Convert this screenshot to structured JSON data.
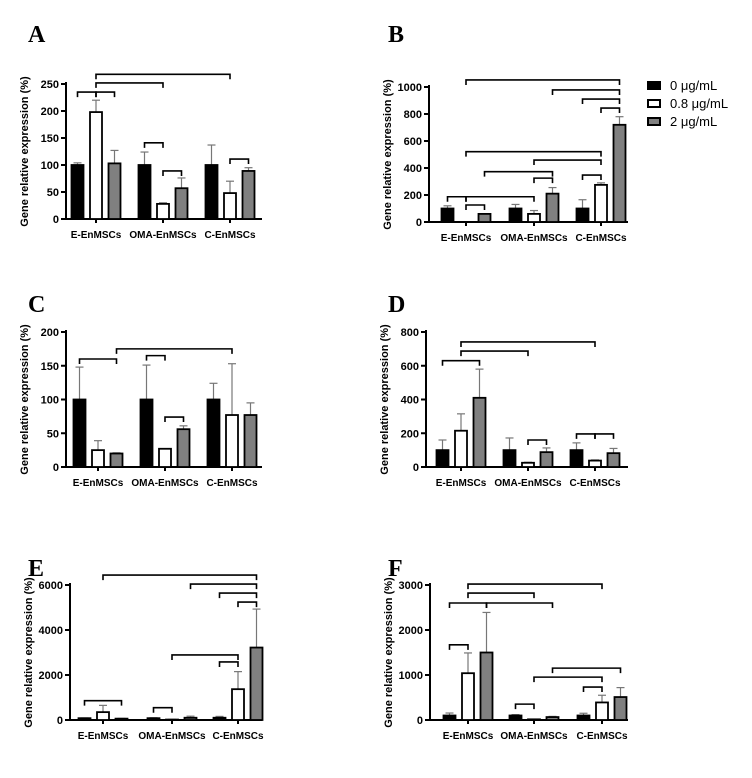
{
  "colors": {
    "0 μg/mL": "#000000",
    "0.8 μg/mL": "#ffffff",
    "2 μg/mL": "#808080",
    "axis": "#000000",
    "bracket": "#000000"
  },
  "legend": {
    "placement": "right of panel B",
    "entries": [
      "0 μg/mL",
      "0.8 μg/mL",
      "2 μg/mL"
    ]
  },
  "chart_data": [
    {
      "panel": "A",
      "type": "bar",
      "ylabel": "Gene relative expression (%)",
      "ylim": [
        0,
        250
      ],
      "yticks": [
        0,
        50,
        100,
        150,
        200,
        250
      ],
      "categories": [
        "E-EnMSCs",
        "OMA-EnMSCs",
        "C-EnMSCs"
      ],
      "series": [
        {
          "name": "0 μg/mL",
          "values": [
            100,
            100,
            100
          ],
          "error_upper": [
            104,
            124,
            137
          ]
        },
        {
          "name": "0.8 μg/mL",
          "values": [
            198,
            28,
            48
          ],
          "error_upper": [
            220,
            30,
            70
          ]
        },
        {
          "name": "2 μg/mL",
          "values": [
            103,
            57,
            89
          ],
          "error_upper": [
            127,
            76,
            95
          ]
        }
      ],
      "significance_brackets": [
        {
          "bars": [
            0,
            1
          ],
          "y": 235
        },
        {
          "bars": [
            1,
            2
          ],
          "y": 235
        },
        {
          "bars": [
            1,
            4
          ],
          "y": 252
        },
        {
          "bars": [
            1,
            7
          ],
          "y": 268
        },
        {
          "bars": [
            3,
            4
          ],
          "y": 141
        },
        {
          "bars": [
            4,
            5
          ],
          "y": 89
        },
        {
          "bars": [
            7,
            8
          ],
          "y": 111
        }
      ]
    },
    {
      "panel": "B",
      "type": "bar",
      "ylabel": "Gene relative expression (%)",
      "ylim": [
        0,
        1000
      ],
      "yticks": [
        0,
        200,
        400,
        600,
        800,
        1000
      ],
      "categories": [
        "E-EnMSCs",
        "OMA-EnMSCs",
        "C-EnMSCs"
      ],
      "series": [
        {
          "name": "0 μg/mL",
          "values": [
            100,
            100,
            100
          ],
          "error_upper": [
            120,
            130,
            165
          ]
        },
        {
          "name": "0.8 μg/mL",
          "values": [
            0,
            60,
            275
          ],
          "error_upper": [
            0,
            85,
            290
          ]
        },
        {
          "name": "2 μg/mL",
          "values": [
            60,
            210,
            720
          ],
          "error_upper": [
            62,
            255,
            780
          ]
        }
      ],
      "significance_brackets": [
        {
          "bars": [
            0,
            1
          ],
          "y": 187
        },
        {
          "bars": [
            1,
            4
          ],
          "y": 187
        },
        {
          "bars": [
            1,
            2
          ],
          "y": 126
        },
        {
          "bars": [
            2,
            5
          ],
          "y": 373
        },
        {
          "bars": [
            4,
            5
          ],
          "y": 325
        },
        {
          "bars": [
            4,
            7
          ],
          "y": 459
        },
        {
          "bars": [
            1,
            7
          ],
          "y": 521
        },
        {
          "bars": [
            6,
            7
          ],
          "y": 348
        },
        {
          "bars": [
            7,
            8
          ],
          "y": 844
        },
        {
          "bars": [
            6,
            8
          ],
          "y": 911
        },
        {
          "bars": [
            5,
            8
          ],
          "y": 978
        },
        {
          "bars": [
            1,
            8
          ],
          "y": 1052
        }
      ]
    },
    {
      "panel": "C",
      "type": "bar",
      "ylabel": "Gene relative expression (%)",
      "ylim": [
        0,
        200
      ],
      "yticks": [
        0,
        50,
        100,
        150,
        200
      ],
      "categories": [
        "E-EnMSCs",
        "OMA-EnMSCs",
        "C-EnMSCs"
      ],
      "series": [
        {
          "name": "0 μg/mL",
          "values": [
            100,
            100,
            100
          ],
          "error_upper": [
            148,
            151,
            124
          ]
        },
        {
          "name": "0.8 μg/mL",
          "values": [
            25,
            27,
            77
          ],
          "error_upper": [
            39,
            27,
            153
          ]
        },
        {
          "name": "2 μg/mL",
          "values": [
            20,
            56,
            77
          ],
          "error_upper": [
            21,
            61,
            95
          ]
        }
      ],
      "significance_brackets": [
        {
          "bars": [
            0,
            2
          ],
          "y": 160
        },
        {
          "bars": [
            2,
            7
          ],
          "y": 175
        },
        {
          "bars": [
            3,
            4
          ],
          "y": 165
        },
        {
          "bars": [
            4,
            5
          ],
          "y": 74
        }
      ]
    },
    {
      "panel": "D",
      "type": "bar",
      "ylabel": "Gene relative expression (%)",
      "ylim": [
        0,
        800
      ],
      "yticks": [
        0,
        200,
        400,
        600,
        800
      ],
      "categories": [
        "E-EnMSCs",
        "OMA-EnMSCs",
        "C-EnMSCs"
      ],
      "series": [
        {
          "name": "0 μg/mL",
          "values": [
            100,
            100,
            100
          ],
          "error_upper": [
            160,
            172,
            143
          ]
        },
        {
          "name": "0.8 μg/mL",
          "values": [
            215,
            25,
            38
          ],
          "error_upper": [
            315,
            28,
            42
          ]
        },
        {
          "name": "2 μg/mL",
          "values": [
            410,
            88,
            82
          ],
          "error_upper": [
            580,
            113,
            110
          ]
        }
      ],
      "significance_brackets": [
        {
          "bars": [
            0,
            2
          ],
          "y": 630
        },
        {
          "bars": [
            1,
            4
          ],
          "y": 687
        },
        {
          "bars": [
            1,
            7
          ],
          "y": 741
        },
        {
          "bars": [
            4,
            5
          ],
          "y": 160
        },
        {
          "bars": [
            6,
            7
          ],
          "y": 196
        },
        {
          "bars": [
            7,
            8
          ],
          "y": 196
        }
      ]
    },
    {
      "panel": "E",
      "type": "bar",
      "ylabel": "Gene relative expression (%)",
      "ylim": [
        0,
        6000
      ],
      "yticks": [
        0,
        2000,
        4000,
        6000
      ],
      "categories": [
        "E-EnMSCs",
        "OMA-EnMSCs",
        "C-EnMSCs"
      ],
      "series": [
        {
          "name": "0 μg/mL",
          "values": [
            80,
            80,
            100
          ],
          "error_upper": [
            90,
            100,
            160
          ]
        },
        {
          "name": "0.8 μg/mL",
          "values": [
            350,
            20,
            1370
          ],
          "error_upper": [
            650,
            25,
            2150
          ]
        },
        {
          "name": "2 μg/mL",
          "values": [
            60,
            100,
            3220
          ],
          "error_upper": [
            70,
            170,
            4930
          ]
        }
      ],
      "significance_brackets": [
        {
          "bars": [
            0,
            2
          ],
          "y": 860
        },
        {
          "bars": [
            3,
            4
          ],
          "y": 547
        },
        {
          "bars": [
            4,
            7
          ],
          "y": 2890
        },
        {
          "bars": [
            6,
            7
          ],
          "y": 2580
        },
        {
          "bars": [
            1,
            8
          ],
          "y": 6440
        },
        {
          "bars": [
            5,
            8
          ],
          "y": 6040
        },
        {
          "bars": [
            6,
            8
          ],
          "y": 5640
        },
        {
          "bars": [
            7,
            8
          ],
          "y": 5240
        }
      ]
    },
    {
      "panel": "F",
      "type": "bar",
      "ylabel": "Gene relative expression (%)",
      "ylim": [
        0,
        3000
      ],
      "yticks": [
        0,
        1000,
        2000,
        3000
      ],
      "categories": [
        "E-EnMSCs",
        "OMA-EnMSCs",
        "C-EnMSCs"
      ],
      "series": [
        {
          "name": "0 μg/mL",
          "values": [
            100,
            100,
            100
          ],
          "error_upper": [
            155,
            120,
            150
          ]
        },
        {
          "name": "0.8 μg/mL",
          "values": [
            1040,
            15,
            390
          ],
          "error_upper": [
            1490,
            18,
            550
          ]
        },
        {
          "name": "2 μg/mL",
          "values": [
            1500,
            65,
            510
          ],
          "error_upper": [
            2390,
            80,
            720
          ]
        }
      ],
      "significance_brackets": [
        {
          "bars": [
            0,
            1
          ],
          "y": 1670
        },
        {
          "bars": [
            1,
            4
          ],
          "y": 2820
        },
        {
          "bars": [
            1,
            7
          ],
          "y": 3020
        },
        {
          "bars": [
            0,
            2
          ],
          "y": 2600
        },
        {
          "bars": [
            2,
            5
          ],
          "y": 2600
        },
        {
          "bars": [
            3,
            4
          ],
          "y": 353
        },
        {
          "bars": [
            4,
            7
          ],
          "y": 953
        },
        {
          "bars": [
            5,
            8
          ],
          "y": 1153
        },
        {
          "bars": [
            6,
            7
          ],
          "y": 733
        }
      ]
    }
  ]
}
